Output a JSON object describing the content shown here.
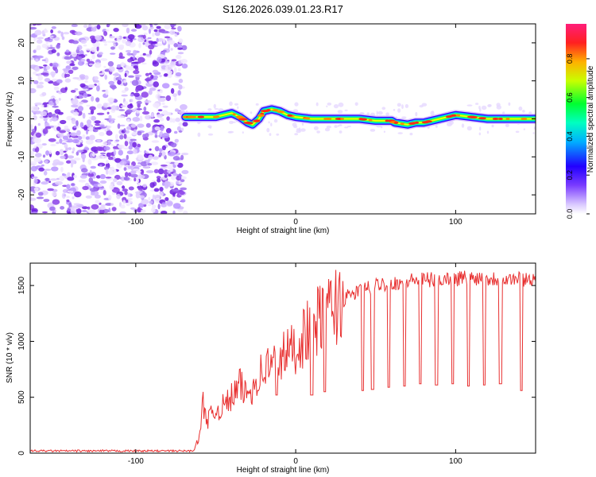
{
  "figure_title": "S126.2026.039.01.23.R17",
  "colors": {
    "snr_line": "#e83030",
    "speckle": "#8a2be2",
    "axis": "#000000"
  },
  "chart_data": [
    {
      "type": "heatmap",
      "title": "S126.2026.039.01.23.R17",
      "xlabel": "Height of straight line (km)",
      "ylabel": "Frequency (Hz)",
      "xlim": [
        -166,
        150
      ],
      "ylim": [
        -25,
        25
      ],
      "xticks": [
        "-100",
        "0",
        "100"
      ],
      "yticks": [
        "-20",
        "-10",
        "0",
        "10",
        "20"
      ],
      "noise_region_x": [
        -166,
        -69
      ],
      "signal_track": {
        "x": [
          -69,
          -60,
          -50,
          -40,
          -35,
          -30,
          -27,
          -23,
          -20,
          -15,
          -10,
          -5,
          0,
          10,
          20,
          30,
          40,
          50,
          60,
          62,
          70,
          75,
          80,
          90,
          100,
          110,
          120,
          130,
          140,
          150
        ],
        "freq_hz": [
          0.5,
          0.5,
          0.5,
          1.5,
          0.5,
          -1.0,
          -1.5,
          0.0,
          2.0,
          2.5,
          2.0,
          1.0,
          0.5,
          0.0,
          0.0,
          0.0,
          0.0,
          -0.5,
          -0.5,
          -1.0,
          -1.5,
          -1.0,
          -1.0,
          0.0,
          1.0,
          0.5,
          0.0,
          0.0,
          0.0,
          0.0
        ]
      },
      "colorbar": {
        "label": "Normalized spectral amplitude",
        "ticks": [
          "0.0",
          "0.2",
          "0.4",
          "0.6",
          "0.8"
        ],
        "range": [
          0,
          0.98
        ]
      }
    },
    {
      "type": "line",
      "xlabel": "Height of straight line (km)",
      "ylabel": "SNR (10 * v/v)",
      "xlim": [
        -166,
        150
      ],
      "ylim": [
        0,
        1700
      ],
      "xticks": [
        "-100",
        "0",
        "100"
      ],
      "yticks": [
        "0",
        "500",
        "1000",
        "1500"
      ],
      "series": [
        {
          "name": "SNR",
          "x": [
            -166,
            -150,
            -120,
            -100,
            -80,
            -64,
            -60,
            -58,
            -55,
            -50,
            -45,
            -40,
            -35,
            -30,
            -25,
            -20,
            -15,
            -10,
            -5,
            0,
            5,
            10,
            15,
            20,
            25,
            30,
            35,
            40,
            45,
            50,
            55,
            60,
            65,
            70,
            75,
            80,
            85,
            90,
            95,
            100,
            105,
            110,
            115,
            120,
            125,
            130,
            135,
            140,
            145,
            150
          ],
          "values": [
            20,
            20,
            20,
            20,
            20,
            20,
            150,
            450,
            300,
            380,
            420,
            500,
            600,
            520,
            650,
            750,
            800,
            850,
            900,
            950,
            1050,
            1150,
            1200,
            1250,
            1320,
            1370,
            1420,
            1450,
            1480,
            1500,
            1520,
            1520,
            1530,
            1540,
            1550,
            1550,
            1550,
            1560,
            1560,
            1560,
            1570,
            1570,
            1570,
            1560,
            1560,
            1560,
            1560,
            1560,
            1560,
            1560
          ]
        }
      ],
      "dropouts": {
        "x": [
          -12,
          10,
          18,
          42,
          48,
          58,
          68,
          78,
          88,
          98,
          108,
          118,
          128,
          141
        ],
        "values": [
          520,
          520,
          550,
          560,
          570,
          590,
          600,
          620,
          610,
          620,
          600,
          610,
          620,
          560
        ]
      }
    }
  ]
}
